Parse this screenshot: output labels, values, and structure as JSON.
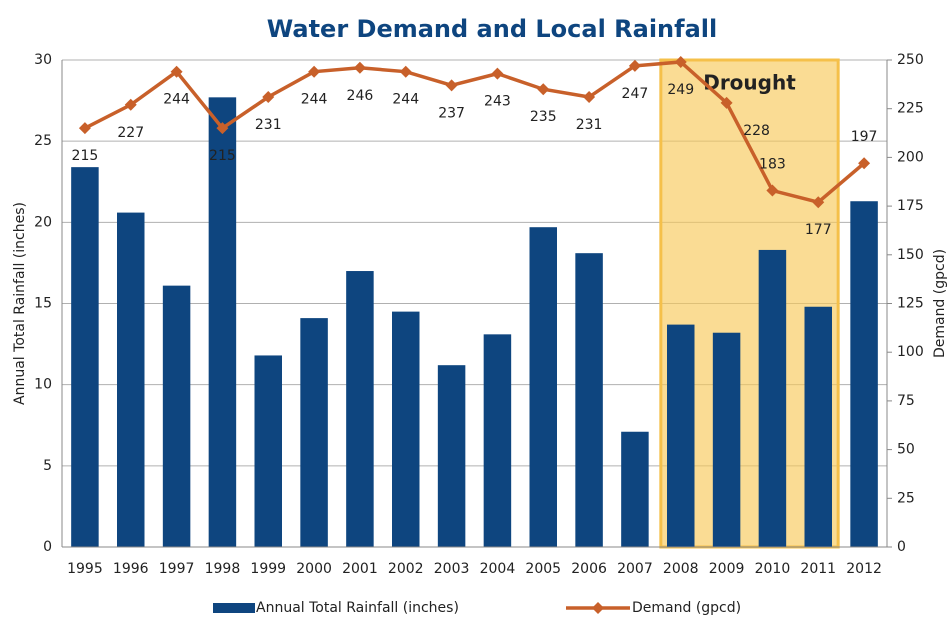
{
  "chart_data": {
    "type": "bar_line",
    "title": "Water Demand and Local Rainfall",
    "categories": [
      "1995",
      "1996",
      "1997",
      "1998",
      "1999",
      "2000",
      "2001",
      "2002",
      "2003",
      "2004",
      "2005",
      "2006",
      "2007",
      "2008",
      "2009",
      "2010",
      "2011",
      "2012"
    ],
    "series": [
      {
        "name": "Annual Total Rainfall (inches)",
        "color": "#0e457f",
        "type": "bar",
        "values": [
          23.4,
          20.6,
          16.1,
          27.7,
          11.8,
          14.1,
          17.0,
          14.5,
          11.2,
          13.1,
          19.7,
          18.1,
          7.1,
          13.7,
          13.2,
          18.3,
          14.8,
          21.3
        ]
      },
      {
        "name": "Demand (gpcd)",
        "color": "#c8602a",
        "type": "line",
        "axis": "y2",
        "values": [
          215,
          227,
          244,
          215,
          231,
          244,
          246,
          244,
          237,
          243,
          235,
          231,
          247,
          249,
          228,
          183,
          177,
          197
        ]
      }
    ],
    "ylabel": "Annual Total Rainfall (inches)",
    "y2label": "Demand (gpcd)",
    "ylim": [
      0,
      30
    ],
    "yticks": [
      0,
      5,
      10,
      15,
      20,
      25,
      30
    ],
    "y2lim": [
      0,
      250
    ],
    "y2ticks": [
      0,
      25,
      50,
      75,
      100,
      125,
      150,
      175,
      200,
      225,
      250
    ],
    "grid": true,
    "legend": "bottom",
    "annotation": {
      "text": "Drought",
      "from": "2008",
      "to": "2011"
    }
  }
}
